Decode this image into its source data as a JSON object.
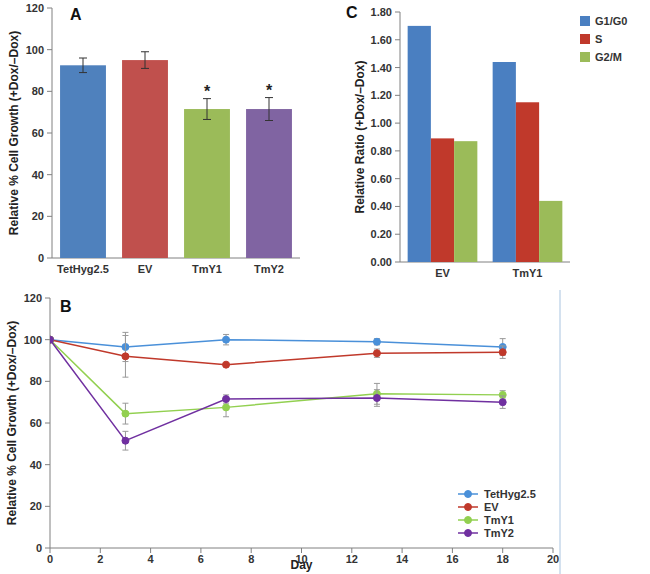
{
  "chart_data": [
    {
      "type": "bar",
      "title": "A",
      "y_label": "Relative % Cell Growth  (+Dox/–Dox)",
      "categories": [
        "TetHyg2.5",
        "EV",
        "TmY1",
        "TmY2"
      ],
      "values": [
        92.5,
        95,
        71.5,
        71.5
      ],
      "errors": [
        3.5,
        4,
        5,
        5.5
      ],
      "colors": [
        "#4f81bd",
        "#c0504d",
        "#9bbb59",
        "#8064a2"
      ],
      "ylim": [
        0,
        120
      ],
      "yticks": [
        0,
        20,
        40,
        60,
        80,
        100,
        120
      ],
      "grid": false,
      "annotations": [
        {
          "text": "*",
          "category": "TmY1"
        },
        {
          "text": "*",
          "category": "TmY2"
        }
      ]
    },
    {
      "type": "line",
      "title": "B",
      "x_label": "Day",
      "y_label": "Relative % Cell Growth  (+Dox/–Dox)",
      "x": [
        0,
        3,
        7,
        13,
        18
      ],
      "series": [
        {
          "name": "TetHyg2.5",
          "color": "#4a90d9",
          "values": [
            100,
            96.5,
            100,
            99,
            96.5
          ],
          "errors": [
            0,
            7,
            2.5,
            1.5,
            4
          ]
        },
        {
          "name": "EV",
          "color": "#c0392b",
          "values": [
            100,
            92,
            88,
            93.5,
            94
          ],
          "errors": [
            0,
            10,
            0,
            2,
            3
          ]
        },
        {
          "name": "TmY1",
          "color": "#92d050",
          "values": [
            100,
            64.5,
            67.5,
            74,
            73.5
          ],
          "errors": [
            0,
            5,
            4.5,
            5,
            2
          ]
        },
        {
          "name": "TmY2",
          "color": "#7030a0",
          "values": [
            100,
            51.5,
            71.5,
            72,
            70
          ],
          "errors": [
            0,
            4.5,
            2,
            4,
            3
          ]
        }
      ],
      "xlim": [
        0,
        20
      ],
      "xticks": [
        0,
        2,
        4,
        6,
        8,
        10,
        12,
        14,
        16,
        18,
        20
      ],
      "ylim": [
        0,
        120
      ],
      "yticks": [
        0,
        20,
        40,
        60,
        80,
        100,
        120
      ],
      "grid": false,
      "legend": "bottom-right",
      "marker": "circle"
    },
    {
      "type": "bar",
      "title": "C",
      "y_label": "Relative Ratio (+Dox/–Dox)",
      "categories": [
        "EV",
        "TmY1"
      ],
      "series": [
        {
          "name": "G1/G0",
          "color": "#4a7fc1",
          "values": [
            1.7,
            1.44
          ]
        },
        {
          "name": "S",
          "color": "#c0392b",
          "values": [
            0.89,
            1.15
          ]
        },
        {
          "name": "G2/M",
          "color": "#9bbb59",
          "values": [
            0.87,
            0.44
          ]
        }
      ],
      "ylim": [
        0,
        1.8
      ],
      "yticks": [
        {
          "value": 0,
          "label": "0.00"
        },
        {
          "value": 0.2,
          "label": "0.20"
        },
        {
          "value": 0.4,
          "label": "0.40"
        },
        {
          "value": 0.6,
          "label": "0.60"
        },
        {
          "value": 0.8,
          "label": "0.80"
        },
        {
          "value": 1.0,
          "label": "1.00"
        },
        {
          "value": 1.2,
          "label": "1.20"
        },
        {
          "value": 1.4,
          "label": "1.40"
        },
        {
          "value": 1.6,
          "label": "1.60"
        },
        {
          "value": 1.8,
          "label": "1.80"
        }
      ],
      "grid": false,
      "legend": "right"
    }
  ]
}
